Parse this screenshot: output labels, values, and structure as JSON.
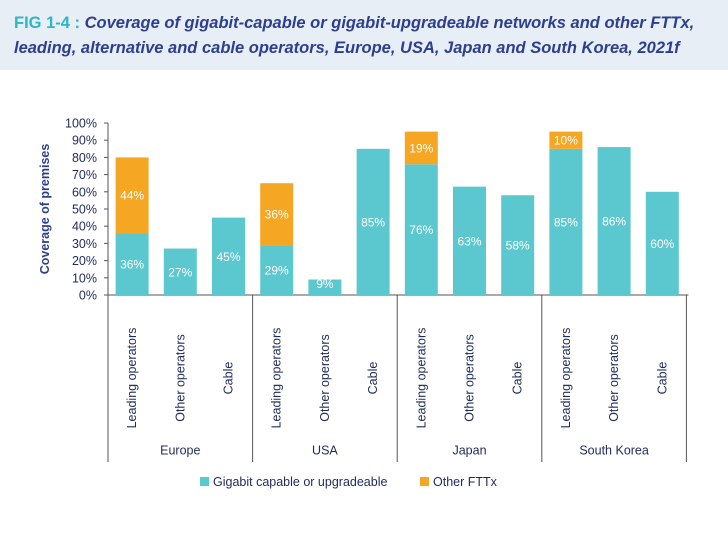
{
  "header": {
    "fig_label": "FIG 1-4 :",
    "title": "Coverage of gigabit-capable or gigabit-upgradeable networks and other FTTx, leading, alternative and cable operators, Europe, USA, Japan and South Korea, 2021f"
  },
  "chart_data": {
    "type": "bar",
    "stacked": true,
    "ylabel": "Coverage of premises",
    "ylim": [
      0,
      100
    ],
    "yticks": [
      "0%",
      "10%",
      "20%",
      "30%",
      "40%",
      "50%",
      "60%",
      "70%",
      "80%",
      "90%",
      "100%"
    ],
    "groups": [
      "Europe",
      "USA",
      "Japan",
      "South Korea"
    ],
    "categories": [
      "Leading operators",
      "Other operators",
      "Cable",
      "Leading operators",
      "Other operators",
      "Cable",
      "Leading operators",
      "Other operators",
      "Cable",
      "Leading operators",
      "Other operators",
      "Cable"
    ],
    "series": [
      {
        "name": "Gigabit capable or upgradeable",
        "color": "#5bc8cf",
        "values": [
          36,
          27,
          45,
          29,
          9,
          85,
          76,
          63,
          58,
          85,
          86,
          60
        ]
      },
      {
        "name": "Other FTTx",
        "color": "#f5a623",
        "values": [
          44,
          0,
          0,
          36,
          0,
          0,
          19,
          0,
          0,
          10,
          0,
          0
        ]
      }
    ],
    "data_labels": {
      "Gigabit capable or upgradeable": [
        "36%",
        "27%",
        "45%",
        "29%",
        "9%",
        "85%",
        "76%",
        "63%",
        "58%",
        "85%",
        "86%",
        "60%"
      ],
      "Other FTTx": [
        "44%",
        "",
        "",
        "36%",
        "",
        "",
        "19%",
        "",
        "",
        "10%",
        "",
        ""
      ]
    },
    "grid": false,
    "legend": "bottom"
  }
}
